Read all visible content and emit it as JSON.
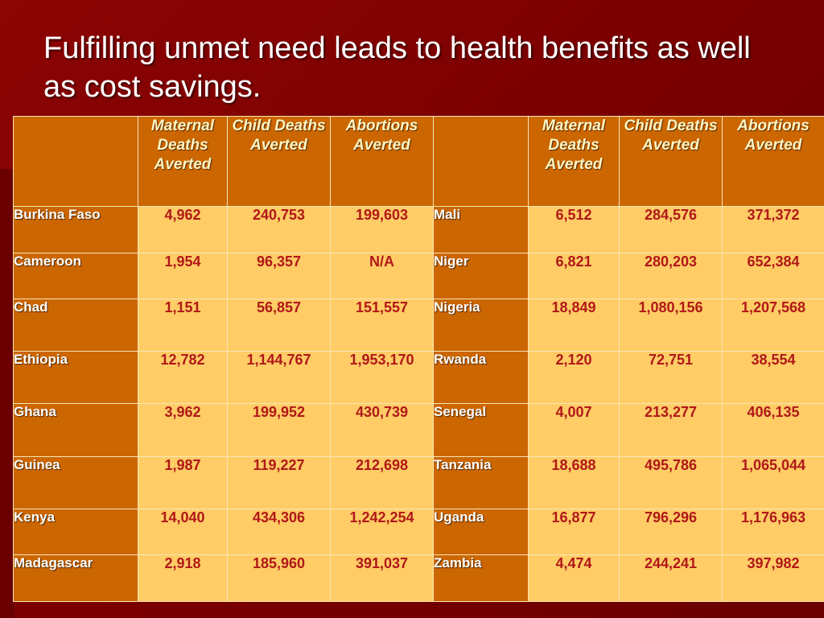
{
  "title": "Fulfilling unmet need leads to health benefits as well as cost savings.",
  "table": {
    "headers": [
      "",
      "Maternal Deaths Averted",
      "Child Deaths Averted",
      "Abortions Averted",
      "",
      "Maternal Deaths Averted",
      "Child Deaths Averted",
      "Abortions Averted"
    ],
    "rows": [
      {
        "left": {
          "country": "Burkina Faso",
          "maternal": "4,962",
          "child": "240,753",
          "abortions": "199,603"
        },
        "right": {
          "country": "Mali",
          "maternal": "6,512",
          "child": "284,576",
          "abortions": "371,372"
        }
      },
      {
        "left": {
          "country": "Cameroon",
          "maternal": "1,954",
          "child": "96,357",
          "abortions": "N/A"
        },
        "right": {
          "country": "Niger",
          "maternal": "6,821",
          "child": "280,203",
          "abortions": "652,384"
        }
      },
      {
        "left": {
          "country": "Chad",
          "maternal": "1,151",
          "child": "56,857",
          "abortions": "151,557"
        },
        "right": {
          "country": "Nigeria",
          "maternal": "18,849",
          "child": "1,080,156",
          "abortions": "1,207,568"
        }
      },
      {
        "left": {
          "country": "Ethiopia",
          "maternal": "12,782",
          "child": "1,144,767",
          "abortions": "1,953,170"
        },
        "right": {
          "country": "Rwanda",
          "maternal": "2,120",
          "child": "72,751",
          "abortions": "38,554"
        }
      },
      {
        "left": {
          "country": "Ghana",
          "maternal": "3,962",
          "child": "199,952",
          "abortions": "430,739"
        },
        "right": {
          "country": "Senegal",
          "maternal": "4,007",
          "child": "213,277",
          "abortions": "406,135"
        }
      },
      {
        "left": {
          "country": "Guinea",
          "maternal": "1,987",
          "child": "119,227",
          "abortions": "212,698"
        },
        "right": {
          "country": "Tanzania",
          "maternal": "18,688",
          "child": "495,786",
          "abortions": "1,065,044"
        }
      },
      {
        "left": {
          "country": "Kenya",
          "maternal": "14,040",
          "child": "434,306",
          "abortions": "1,242,254"
        },
        "right": {
          "country": "Uganda",
          "maternal": "16,877",
          "child": "796,296",
          "abortions": "1,176,963"
        }
      },
      {
        "left": {
          "country": "Madagascar",
          "maternal": "2,918",
          "child": "185,960",
          "abortions": "391,037"
        },
        "right": {
          "country": "Zambia",
          "maternal": "4,474",
          "child": "244,241",
          "abortions": "397,982"
        }
      }
    ]
  },
  "colors": {
    "background": "#7a0000",
    "header_cell": "#cc6600",
    "value_cell": "#ffcc66",
    "value_text": "#b01818",
    "header_text": "#fff6c4"
  }
}
